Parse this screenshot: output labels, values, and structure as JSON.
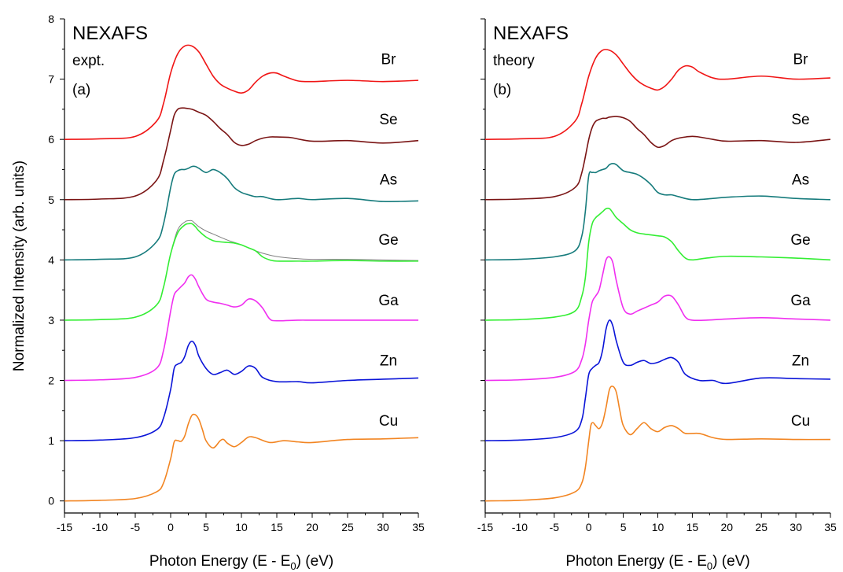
{
  "chart_data": [
    {
      "type": "line",
      "panel": "expt",
      "title": "NEXAFS",
      "subtitle": "expt.",
      "tag": "(a)",
      "xlabel": "Photon Energy (E - E",
      "xlabel_sub": "0",
      "xlabel_end": ") (eV)",
      "ylabel": "Normalized Intensity (arb. units)",
      "xlim": [
        -15,
        35
      ],
      "ylim": [
        -0.2,
        8
      ],
      "xticks": [
        -15,
        -10,
        -5,
        0,
        5,
        10,
        15,
        20,
        25,
        30,
        35
      ],
      "yticks": [
        0,
        1,
        2,
        3,
        4,
        5,
        6,
        7,
        8
      ],
      "series": [
        {
          "name": "Cu",
          "color": "#f28522",
          "offset": 0,
          "x": [
            -15,
            -10,
            -5,
            -2,
            -1,
            0,
            0.5,
            1,
            1.5,
            2,
            2.5,
            3,
            3.5,
            4,
            4.5,
            5,
            6,
            7,
            7.5,
            8,
            9,
            10,
            11,
            12,
            14,
            16,
            18,
            20,
            25,
            30,
            35
          ],
          "y": [
            0,
            0.01,
            0.04,
            0.15,
            0.3,
            0.7,
            0.98,
            1.0,
            0.99,
            1.08,
            1.28,
            1.42,
            1.43,
            1.35,
            1.18,
            1.0,
            0.88,
            1.0,
            1.02,
            0.96,
            0.9,
            0.97,
            1.06,
            1.05,
            0.97,
            1.0,
            0.98,
            0.97,
            1.02,
            1.03,
            1.05
          ]
        },
        {
          "name": "Zn",
          "color": "#0a14d8",
          "offset": 1,
          "x": [
            -15,
            -10,
            -5,
            -2,
            -1,
            0,
            0.5,
            1,
            1.5,
            2,
            2.5,
            3,
            3.5,
            4,
            5,
            6,
            7,
            8,
            9,
            10,
            11,
            12,
            13,
            15,
            18,
            20,
            25,
            30,
            35
          ],
          "y": [
            1,
            1.01,
            1.05,
            1.18,
            1.38,
            1.85,
            2.2,
            2.27,
            2.3,
            2.4,
            2.58,
            2.65,
            2.58,
            2.4,
            2.2,
            2.1,
            2.13,
            2.17,
            2.1,
            2.15,
            2.24,
            2.2,
            2.05,
            1.98,
            1.98,
            1.96,
            2.0,
            2.02,
            2.04
          ]
        },
        {
          "name": "Ga",
          "color": "#f02ff0",
          "offset": 2,
          "x": [
            -15,
            -10,
            -5,
            -2,
            -1,
            0,
            0.5,
            1,
            1.5,
            2,
            2.5,
            3,
            3.5,
            4,
            5,
            6,
            7,
            8,
            9,
            10,
            11,
            12,
            13,
            14,
            15,
            18,
            20,
            25,
            30,
            35
          ],
          "y": [
            2,
            2.01,
            2.05,
            2.2,
            2.5,
            3.15,
            3.42,
            3.5,
            3.56,
            3.62,
            3.72,
            3.75,
            3.68,
            3.55,
            3.35,
            3.3,
            3.28,
            3.25,
            3.22,
            3.25,
            3.35,
            3.32,
            3.2,
            3.02,
            2.99,
            3.0,
            3.0,
            3.0,
            3.0,
            3.0
          ]
        },
        {
          "name": "Ge",
          "color": "#33ee33",
          "offset": 3,
          "x": [
            -15,
            -10,
            -5,
            -2,
            -1,
            0,
            1,
            2,
            2.5,
            3,
            3.5,
            4,
            5,
            6,
            7,
            8,
            9,
            10,
            11,
            12,
            13,
            14,
            15,
            18,
            20,
            25,
            30,
            35
          ],
          "y": [
            3,
            3.01,
            3.05,
            3.25,
            3.55,
            4.1,
            4.45,
            4.58,
            4.6,
            4.6,
            4.55,
            4.48,
            4.38,
            4.32,
            4.3,
            4.29,
            4.28,
            4.25,
            4.2,
            4.15,
            4.05,
            4.0,
            3.98,
            3.98,
            3.98,
            3.99,
            3.98,
            3.98
          ]
        },
        {
          "name": "As",
          "color": "#167b7c",
          "offset": 4,
          "x": [
            -15,
            -10,
            -5,
            -2,
            -1,
            0,
            0.5,
            1,
            1.5,
            2,
            2.5,
            3,
            3.5,
            4,
            5,
            6,
            7,
            8,
            9,
            10,
            11,
            12,
            13,
            15,
            18,
            20,
            25,
            30,
            35
          ],
          "y": [
            4,
            4.01,
            4.05,
            4.3,
            4.6,
            5.2,
            5.42,
            5.48,
            5.5,
            5.5,
            5.52,
            5.55,
            5.55,
            5.52,
            5.45,
            5.5,
            5.45,
            5.35,
            5.2,
            5.12,
            5.08,
            5.05,
            5.05,
            5.0,
            5.02,
            5.0,
            5.02,
            4.97,
            4.98
          ]
        },
        {
          "name": "Se",
          "color": "#7a1414",
          "offset": 5,
          "x": [
            -15,
            -10,
            -5,
            -2,
            -1,
            0,
            0.5,
            1,
            1.5,
            2,
            3,
            4,
            5,
            6,
            7,
            8,
            9,
            10,
            11,
            12,
            13,
            14,
            15,
            17,
            20,
            25,
            30,
            35
          ],
          "y": [
            5,
            5.01,
            5.06,
            5.32,
            5.65,
            6.15,
            6.4,
            6.5,
            6.52,
            6.52,
            6.5,
            6.45,
            6.4,
            6.3,
            6.18,
            6.08,
            5.95,
            5.9,
            5.92,
            5.98,
            6.02,
            6.04,
            6.04,
            6.03,
            5.97,
            5.98,
            5.94,
            5.98
          ]
        },
        {
          "name": "Br",
          "color": "#f01515",
          "offset": 6,
          "x": [
            -15,
            -10,
            -5,
            -2,
            -1,
            0,
            1,
            2,
            3,
            4,
            5,
            6,
            7,
            8,
            9,
            10,
            11,
            12,
            13,
            14,
            15,
            16,
            18,
            20,
            25,
            30,
            35
          ],
          "y": [
            6,
            6.01,
            6.05,
            6.3,
            6.6,
            7.1,
            7.42,
            7.55,
            7.55,
            7.45,
            7.25,
            7.05,
            6.92,
            6.85,
            6.8,
            6.77,
            6.82,
            6.95,
            7.05,
            7.1,
            7.1,
            7.05,
            6.97,
            6.96,
            6.98,
            6.96,
            6.98
          ]
        }
      ],
      "reference": {
        "color": "#808080",
        "x": [
          -15,
          -10,
          -5,
          -2,
          -1,
          0,
          1,
          2,
          2.5,
          3,
          3.5,
          4,
          5,
          6,
          8,
          10,
          12,
          14,
          16,
          18,
          20,
          25,
          30,
          35
        ],
        "y": [
          3,
          3.01,
          3.05,
          3.25,
          3.55,
          4.1,
          4.5,
          4.63,
          4.65,
          4.65,
          4.6,
          4.55,
          4.48,
          4.43,
          4.33,
          4.25,
          4.15,
          4.08,
          4.04,
          4.02,
          4.01,
          4.01,
          4.0,
          3.99
        ]
      }
    },
    {
      "type": "line",
      "panel": "theory",
      "title": "NEXAFS",
      "subtitle": "theory",
      "tag": "(b)",
      "xlabel": "Photon Energy (E - E",
      "xlabel_sub": "0",
      "xlabel_end": ") (eV)",
      "xlim": [
        -15,
        35
      ],
      "ylim": [
        -0.2,
        8
      ],
      "xticks": [
        -15,
        -10,
        -5,
        0,
        5,
        10,
        15,
        20,
        25,
        30,
        35
      ],
      "series": [
        {
          "name": "Cu",
          "color": "#f28522",
          "offset": 0,
          "x": [
            -15,
            -10,
            -5,
            -2,
            -1,
            -0.5,
            0,
            0.3,
            0.6,
            1,
            1.5,
            2,
            2.5,
            3,
            3.5,
            4,
            4.5,
            5,
            6,
            7,
            8,
            9,
            10,
            11,
            12,
            13,
            14,
            16,
            18,
            20,
            25,
            30,
            35
          ],
          "y": [
            0,
            0.01,
            0.05,
            0.15,
            0.3,
            0.55,
            1.0,
            1.25,
            1.3,
            1.25,
            1.2,
            1.3,
            1.55,
            1.85,
            1.9,
            1.8,
            1.5,
            1.25,
            1.1,
            1.2,
            1.3,
            1.2,
            1.15,
            1.22,
            1.25,
            1.2,
            1.12,
            1.12,
            1.05,
            1.02,
            1.03,
            1.02,
            1.02
          ]
        },
        {
          "name": "Zn",
          "color": "#0a14d8",
          "offset": 1,
          "x": [
            -15,
            -10,
            -5,
            -2,
            -1,
            -0.5,
            0,
            0.5,
            1,
            1.5,
            2,
            2.5,
            3,
            3.5,
            4,
            5,
            6,
            7,
            8,
            9,
            10,
            11,
            12,
            13,
            14,
            16,
            18,
            20,
            25,
            30,
            35
          ],
          "y": [
            1,
            1.01,
            1.05,
            1.15,
            1.35,
            1.7,
            2.1,
            2.2,
            2.25,
            2.3,
            2.5,
            2.85,
            3.0,
            2.9,
            2.65,
            2.3,
            2.25,
            2.3,
            2.33,
            2.28,
            2.3,
            2.35,
            2.38,
            2.3,
            2.1,
            2.0,
            2.0,
            1.95,
            2.04,
            2.03,
            2.02
          ]
        },
        {
          "name": "Ga",
          "color": "#f02ff0",
          "offset": 2,
          "x": [
            -15,
            -10,
            -5,
            -2,
            -1,
            -0.5,
            0,
            0.5,
            1,
            1.5,
            2,
            2.5,
            3,
            3.5,
            4,
            5,
            6,
            7,
            8,
            9,
            10,
            11,
            12,
            13,
            14,
            15,
            17,
            20,
            25,
            30,
            35
          ],
          "y": [
            2,
            2.01,
            2.05,
            2.15,
            2.35,
            2.6,
            3.0,
            3.3,
            3.4,
            3.5,
            3.75,
            4.0,
            4.05,
            3.95,
            3.65,
            3.2,
            3.1,
            3.15,
            3.2,
            3.25,
            3.3,
            3.4,
            3.4,
            3.25,
            3.05,
            3.0,
            3.0,
            3.02,
            3.04,
            3.02,
            3.0
          ]
        },
        {
          "name": "Ge",
          "color": "#33ee33",
          "offset": 3,
          "x": [
            -15,
            -10,
            -5,
            -2,
            -1,
            -0.5,
            0,
            0.5,
            1,
            1.5,
            2,
            2.5,
            3,
            3.5,
            4,
            5,
            6,
            7,
            8,
            10,
            11,
            12,
            13,
            14,
            15,
            17,
            20,
            25,
            30,
            35
          ],
          "y": [
            3,
            3.01,
            3.05,
            3.15,
            3.4,
            3.7,
            4.3,
            4.6,
            4.7,
            4.75,
            4.8,
            4.85,
            4.85,
            4.78,
            4.7,
            4.6,
            4.5,
            4.45,
            4.43,
            4.4,
            4.38,
            4.3,
            4.15,
            4.03,
            4.0,
            4.03,
            4.06,
            4.05,
            4.03,
            4.0
          ]
        },
        {
          "name": "As",
          "color": "#167b7c",
          "offset": 4,
          "x": [
            -15,
            -10,
            -5,
            -2,
            -1,
            -0.5,
            0,
            0.5,
            1,
            1.5,
            2,
            2.5,
            3,
            3.5,
            4,
            5,
            6,
            7,
            8,
            9,
            10,
            11,
            12,
            13,
            15,
            18,
            20,
            25,
            30,
            35
          ],
          "y": [
            4,
            4.01,
            4.05,
            4.15,
            4.4,
            4.8,
            5.4,
            5.45,
            5.45,
            5.48,
            5.5,
            5.52,
            5.58,
            5.6,
            5.58,
            5.48,
            5.45,
            5.42,
            5.35,
            5.25,
            5.12,
            5.08,
            5.08,
            5.05,
            5.0,
            5.02,
            5.04,
            5.06,
            5.02,
            5.0
          ]
        },
        {
          "name": "Se",
          "color": "#7a1414",
          "offset": 5,
          "x": [
            -15,
            -10,
            -5,
            -2,
            -1,
            0,
            0.5,
            1,
            1.5,
            2,
            2.5,
            3,
            4,
            5,
            6,
            7,
            8,
            9,
            10,
            11,
            12,
            13,
            14,
            15,
            16,
            18,
            20,
            25,
            30,
            35
          ],
          "y": [
            5,
            5.01,
            5.05,
            5.2,
            5.45,
            6.0,
            6.2,
            6.3,
            6.33,
            6.35,
            6.35,
            6.37,
            6.38,
            6.36,
            6.3,
            6.18,
            6.08,
            5.95,
            5.87,
            5.9,
            5.98,
            6.02,
            6.04,
            6.05,
            6.04,
            6.0,
            5.97,
            5.98,
            5.95,
            6.0
          ]
        },
        {
          "name": "Br",
          "color": "#f01515",
          "offset": 6,
          "x": [
            -15,
            -10,
            -5,
            -2,
            -1,
            0,
            1,
            2,
            3,
            4,
            5,
            6,
            7,
            8,
            9,
            10,
            11,
            12,
            13,
            14,
            15,
            16,
            18,
            20,
            25,
            30,
            35
          ],
          "y": [
            6,
            6.01,
            6.05,
            6.3,
            6.6,
            7.05,
            7.35,
            7.48,
            7.48,
            7.4,
            7.25,
            7.1,
            6.98,
            6.9,
            6.85,
            6.82,
            6.88,
            7.0,
            7.15,
            7.22,
            7.2,
            7.12,
            7.02,
            7.0,
            7.05,
            7.0,
            7.02
          ]
        }
      ]
    }
  ]
}
